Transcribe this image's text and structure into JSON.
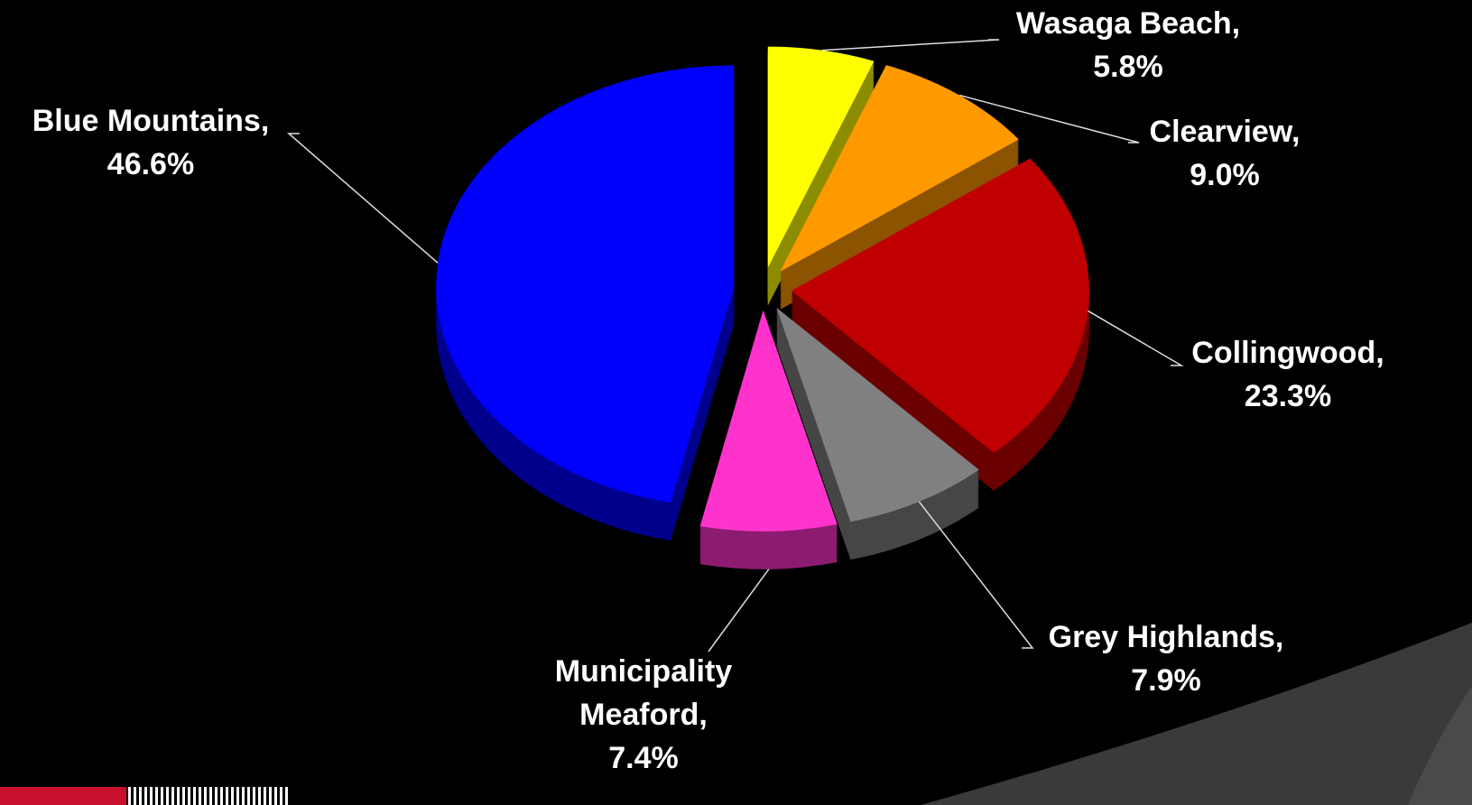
{
  "chart_data": {
    "type": "pie",
    "categories": [
      "Wasaga Beach,",
      "Clearview,",
      "Collingwood,",
      "Grey Highlands,",
      "Municipality Meaford,",
      "Blue Mountains,"
    ],
    "values": [
      5.8,
      9.0,
      23.3,
      7.9,
      7.4,
      46.6
    ],
    "value_labels": [
      "5.8%",
      "9.0%",
      "23.3%",
      "7.9%",
      "7.4%",
      "46.6%"
    ],
    "colors": [
      "#ffff00",
      "#ff9900",
      "#c00000",
      "#808080",
      "#ff33cc",
      "#0000ff"
    ]
  }
}
